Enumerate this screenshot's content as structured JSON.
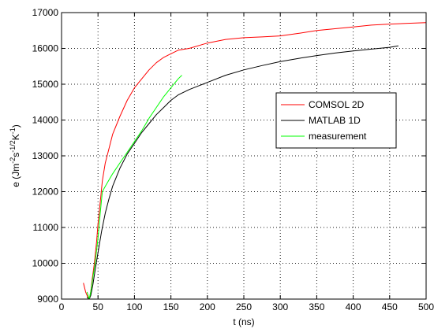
{
  "chart_data": {
    "type": "line",
    "xlabel": "t (ns)",
    "ylabel": {
      "parts": [
        {
          "text": "e (Jm",
          "sup": false
        },
        {
          "text": "-2",
          "sup": true
        },
        {
          "text": "s",
          "sup": false
        },
        {
          "text": "-1/2",
          "sup": true
        },
        {
          "text": "K",
          "sup": false
        },
        {
          "text": "-1",
          "sup": true
        },
        {
          "text": ")",
          "sup": false
        }
      ]
    },
    "xlim": [
      0,
      500
    ],
    "ylim": [
      9000,
      17000
    ],
    "xticks": [
      0,
      50,
      100,
      150,
      200,
      250,
      300,
      350,
      400,
      450,
      500
    ],
    "yticks": [
      9000,
      10000,
      11000,
      12000,
      13000,
      14000,
      15000,
      16000,
      17000
    ],
    "grid": true,
    "legend_position": "center-right",
    "series": [
      {
        "name": "COMSOL 2D",
        "color": "#ff0000",
        "points": [
          [
            30,
            9450
          ],
          [
            33,
            9200
          ],
          [
            36,
            9050
          ],
          [
            38,
            9000
          ],
          [
            40,
            9200
          ],
          [
            42,
            9550
          ],
          [
            45,
            10000
          ],
          [
            48,
            10600
          ],
          [
            50,
            11100
          ],
          [
            53,
            11700
          ],
          [
            56,
            12300
          ],
          [
            60,
            12800
          ],
          [
            65,
            13200
          ],
          [
            70,
            13600
          ],
          [
            80,
            14100
          ],
          [
            90,
            14550
          ],
          [
            100,
            14900
          ],
          [
            110,
            15150
          ],
          [
            120,
            15400
          ],
          [
            130,
            15600
          ],
          [
            140,
            15750
          ],
          [
            150,
            15850
          ],
          [
            160,
            15950
          ],
          [
            175,
            16000
          ],
          [
            200,
            16150
          ],
          [
            225,
            16250
          ],
          [
            250,
            16300
          ],
          [
            275,
            16320
          ],
          [
            300,
            16350
          ],
          [
            325,
            16420
          ],
          [
            350,
            16500
          ],
          [
            375,
            16550
          ],
          [
            400,
            16600
          ],
          [
            425,
            16650
          ],
          [
            450,
            16680
          ],
          [
            475,
            16700
          ],
          [
            500,
            16720
          ]
        ]
      },
      {
        "name": "MATLAB 1D",
        "color": "#000000",
        "points": [
          [
            35,
            9050
          ],
          [
            38,
            9000
          ],
          [
            40,
            9100
          ],
          [
            43,
            9400
          ],
          [
            46,
            9800
          ],
          [
            50,
            10300
          ],
          [
            55,
            10900
          ],
          [
            60,
            11400
          ],
          [
            65,
            11800
          ],
          [
            70,
            12150
          ],
          [
            80,
            12650
          ],
          [
            90,
            13050
          ],
          [
            100,
            13350
          ],
          [
            110,
            13650
          ],
          [
            120,
            13900
          ],
          [
            130,
            14150
          ],
          [
            140,
            14350
          ],
          [
            150,
            14550
          ],
          [
            160,
            14700
          ],
          [
            175,
            14850
          ],
          [
            200,
            15050
          ],
          [
            225,
            15250
          ],
          [
            250,
            15400
          ],
          [
            275,
            15520
          ],
          [
            300,
            15630
          ],
          [
            325,
            15720
          ],
          [
            350,
            15800
          ],
          [
            375,
            15870
          ],
          [
            400,
            15930
          ],
          [
            425,
            15980
          ],
          [
            450,
            16030
          ],
          [
            462,
            16070
          ]
        ]
      },
      {
        "name": "measurement",
        "color": "#00ff00",
        "points": [
          [
            35,
            9200
          ],
          [
            38,
            9000
          ],
          [
            40,
            9200
          ],
          [
            43,
            9600
          ],
          [
            46,
            10000
          ],
          [
            50,
            10700
          ],
          [
            53,
            11400
          ],
          [
            56,
            12000
          ],
          [
            60,
            12150
          ],
          [
            70,
            12500
          ],
          [
            80,
            12800
          ],
          [
            90,
            13100
          ],
          [
            100,
            13400
          ],
          [
            110,
            13700
          ],
          [
            120,
            14050
          ],
          [
            130,
            14350
          ],
          [
            140,
            14650
          ],
          [
            150,
            14900
          ],
          [
            160,
            15150
          ],
          [
            165,
            15250
          ]
        ]
      }
    ]
  }
}
